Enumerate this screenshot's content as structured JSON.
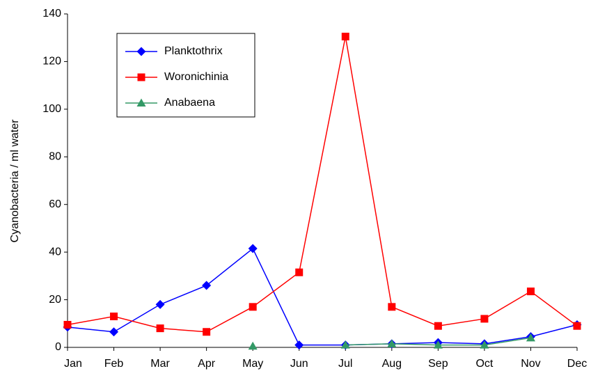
{
  "chart_data": {
    "type": "line",
    "y_label": "Cyanobacteria / ml water",
    "categories": [
      "Jan",
      "Feb",
      "Mar",
      "Apr",
      "May",
      "Jun",
      "Jul",
      "Aug",
      "Sep",
      "Oct",
      "Nov",
      "Dec"
    ],
    "series": [
      {
        "name": "Planktothrix",
        "color": "#0000ff",
        "marker": "diamond",
        "values": [
          8.5,
          6.5,
          18,
          26,
          41.5,
          1,
          1,
          1.5,
          2,
          1.5,
          4.5,
          9.5
        ]
      },
      {
        "name": "Woronichinia",
        "color": "#ff0000",
        "marker": "square",
        "values": [
          9.5,
          13,
          8,
          6.5,
          17,
          31.5,
          130.5,
          17,
          9,
          12,
          23.5,
          9
        ]
      },
      {
        "name": "Anabaena",
        "color": "#339966",
        "marker": "triangle",
        "values": [
          null,
          null,
          null,
          null,
          0.5,
          null,
          1,
          1.5,
          1,
          1,
          4,
          null
        ]
      }
    ],
    "ylim": [
      0,
      140
    ],
    "yticks": [
      0,
      20,
      40,
      60,
      80,
      100,
      120,
      140
    ],
    "legend": "upper left",
    "grid": false
  }
}
